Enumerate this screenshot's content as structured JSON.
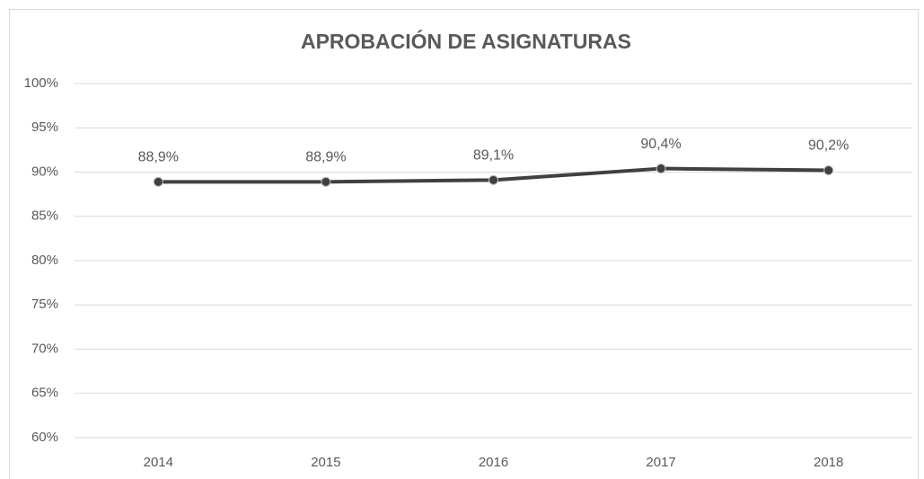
{
  "chart_data": {
    "type": "line",
    "title": "APROBACIÓN DE ASIGNATURAS",
    "categories": [
      "2014",
      "2015",
      "2016",
      "2017",
      "2018"
    ],
    "series": [
      {
        "name": "Aprobación",
        "color": "#404040",
        "values": [
          88.9,
          88.9,
          89.1,
          90.4,
          90.2
        ],
        "value_labels": [
          "88,9%",
          "88,9%",
          "89,1%",
          "90,4%",
          "90,2%"
        ]
      }
    ],
    "ylim": [
      60,
      100
    ],
    "yticks": [
      {
        "value": 60,
        "label": "60%"
      },
      {
        "value": 65,
        "label": "65%"
      },
      {
        "value": 70,
        "label": "70%"
      },
      {
        "value": 75,
        "label": "75%"
      },
      {
        "value": 80,
        "label": "80%"
      },
      {
        "value": 85,
        "label": "85%"
      },
      {
        "value": 90,
        "label": "90%"
      },
      {
        "value": 95,
        "label": "95%"
      },
      {
        "value": 100,
        "label": "100%"
      }
    ],
    "grid": true
  }
}
